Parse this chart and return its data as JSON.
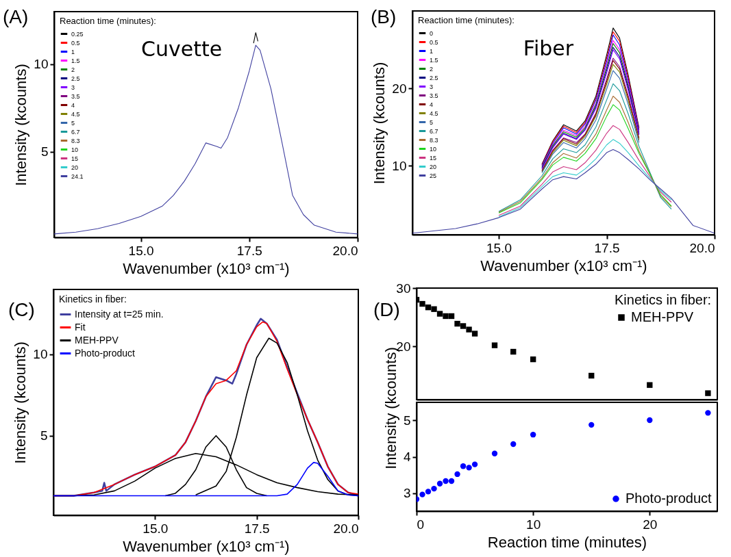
{
  "chart_data": [
    {
      "type": "line",
      "title": "(A)",
      "xlabel": "Wavenumber (x10³ cm⁻¹)",
      "ylabel": "Intensity (kcounts)",
      "legend_title": "Reaction time (minutes):",
      "legend": "top left",
      "annotations": [
        "Cuvette"
      ],
      "xlim": [
        13,
        20
      ],
      "xticks": [
        {
          "value": 15,
          "label": "15.0"
        },
        {
          "value": 17.5,
          "label": "17.5"
        },
        {
          "value": 20,
          "label": "20.0"
        }
      ],
      "ylim": [
        0.1,
        13
      ],
      "yticks": [
        5,
        10
      ],
      "grid": false,
      "x": [
        13,
        13.5,
        14,
        14.5,
        15,
        15.5,
        15.75,
        16,
        16.25,
        16.5,
        16.75,
        16.85,
        17,
        17.25,
        17.5,
        17.65,
        17.75,
        18,
        18.25,
        18.5,
        18.75,
        19,
        19.5,
        20
      ],
      "series": [
        {
          "name": "0.25",
          "color": "#000000",
          "x": [
            17.6,
            17.65,
            17.7
          ],
          "values": [
            11.2,
            11.8,
            11.3
          ]
        },
        {
          "name": "0.5",
          "color": "#ff0000",
          "values": [
            null,
            null,
            null,
            null,
            null,
            null,
            null,
            null,
            null,
            null,
            null,
            null,
            null,
            null,
            null,
            null,
            null,
            null,
            null,
            null,
            null,
            null,
            null,
            null
          ]
        },
        {
          "name": "1",
          "color": "#0000ff",
          "values": [
            null,
            null,
            null,
            null,
            null,
            null,
            null,
            null,
            null,
            null,
            null,
            null,
            null,
            null,
            null,
            null,
            null,
            null,
            null,
            null,
            null,
            null,
            null,
            null
          ]
        },
        {
          "name": "1.5",
          "color": "#ff00ff",
          "values": [
            null,
            null,
            null,
            null,
            null,
            null,
            null,
            null,
            null,
            null,
            null,
            null,
            null,
            null,
            null,
            null,
            null,
            null,
            null,
            null,
            null,
            null,
            null,
            null
          ]
        },
        {
          "name": "2",
          "color": "#008000",
          "values": [
            null,
            null,
            null,
            null,
            null,
            null,
            null,
            null,
            null,
            null,
            null,
            null,
            null,
            null,
            null,
            null,
            null,
            null,
            null,
            null,
            null,
            null,
            null,
            null
          ]
        },
        {
          "name": "2.5",
          "color": "#000080",
          "values": [
            null,
            null,
            null,
            null,
            null,
            null,
            null,
            null,
            null,
            null,
            null,
            null,
            null,
            null,
            null,
            null,
            null,
            null,
            null,
            null,
            null,
            null,
            null,
            null
          ]
        },
        {
          "name": "3",
          "color": "#8000ff",
          "values": [
            null,
            null,
            null,
            null,
            null,
            null,
            null,
            null,
            null,
            null,
            null,
            null,
            null,
            null,
            null,
            null,
            null,
            null,
            null,
            null,
            null,
            null,
            null,
            null
          ]
        },
        {
          "name": "3.5",
          "color": "#800080",
          "values": [
            null,
            null,
            null,
            null,
            null,
            null,
            null,
            null,
            null,
            null,
            null,
            null,
            null,
            null,
            null,
            null,
            null,
            null,
            null,
            null,
            null,
            null,
            null,
            null
          ]
        },
        {
          "name": "4",
          "color": "#800000",
          "values": [
            null,
            null,
            null,
            null,
            null,
            null,
            null,
            null,
            null,
            null,
            null,
            null,
            null,
            null,
            null,
            null,
            null,
            null,
            null,
            null,
            null,
            null,
            null,
            null
          ]
        },
        {
          "name": "4.5",
          "color": "#808000",
          "values": [
            null,
            null,
            null,
            null,
            null,
            null,
            null,
            null,
            null,
            null,
            null,
            null,
            null,
            null,
            null,
            null,
            null,
            null,
            null,
            null,
            null,
            null,
            null,
            null
          ]
        },
        {
          "name": "5",
          "color": "#3366aa",
          "values": [
            null,
            null,
            null,
            null,
            null,
            null,
            null,
            null,
            null,
            null,
            null,
            null,
            null,
            null,
            null,
            null,
            null,
            null,
            null,
            null,
            null,
            null,
            null,
            null
          ]
        },
        {
          "name": "6.7",
          "color": "#199999",
          "values": [
            null,
            null,
            null,
            null,
            null,
            null,
            null,
            null,
            null,
            null,
            null,
            null,
            null,
            null,
            null,
            null,
            null,
            null,
            null,
            null,
            null,
            null,
            null,
            null
          ]
        },
        {
          "name": "8.3",
          "color": "#a8692e",
          "values": [
            null,
            null,
            null,
            null,
            null,
            null,
            null,
            null,
            null,
            null,
            null,
            null,
            null,
            null,
            null,
            null,
            null,
            null,
            null,
            null,
            null,
            null,
            null,
            null
          ]
        },
        {
          "name": "10",
          "color": "#1ed41e",
          "values": [
            null,
            null,
            null,
            null,
            null,
            null,
            null,
            null,
            null,
            null,
            null,
            null,
            null,
            null,
            null,
            null,
            null,
            null,
            null,
            null,
            null,
            null,
            null,
            null
          ]
        },
        {
          "name": "15",
          "color": "#cc3380",
          "values": [
            null,
            null,
            null,
            null,
            null,
            null,
            null,
            null,
            null,
            null,
            null,
            null,
            null,
            null,
            null,
            null,
            null,
            null,
            null,
            null,
            null,
            null,
            null,
            null
          ]
        },
        {
          "name": "20",
          "color": "#33cccc",
          "values": [
            null,
            null,
            null,
            null,
            null,
            null,
            null,
            null,
            null,
            null,
            null,
            null,
            null,
            null,
            null,
            null,
            null,
            null,
            null,
            null,
            null,
            null,
            null,
            null
          ]
        },
        {
          "name": "24.1",
          "color": "#3f3f9f",
          "values": [
            0.3,
            0.4,
            0.6,
            0.9,
            1.3,
            1.9,
            2.5,
            3.3,
            4.3,
            5.5,
            5.3,
            5.2,
            5.8,
            7.5,
            9.6,
            11.08,
            10.8,
            8.6,
            5.6,
            2.5,
            1.4,
            0.8,
            0.4,
            0.3
          ]
        }
      ]
    },
    {
      "type": "line",
      "title": "(B)",
      "xlabel": "Wavenumber (x10³ cm⁻¹)",
      "ylabel": "Intensity (kcounts)",
      "legend_title": "Reaction time (minutes):",
      "legend": "top left",
      "annotations": [
        "Fiber"
      ],
      "xlim": [
        13,
        20
      ],
      "xticks": [
        {
          "value": 15,
          "label": "15.0"
        },
        {
          "value": 17.5,
          "label": "17.5"
        },
        {
          "value": 20,
          "label": "20.0"
        }
      ],
      "ylim": [
        1.1,
        30
      ],
      "yticks": [
        10,
        20
      ],
      "grid": false,
      "x": [
        13,
        14,
        14.5,
        15,
        15.5,
        16,
        16.25,
        16.5,
        16.8,
        17,
        17.25,
        17.5,
        17.65,
        17.8,
        18,
        18.25,
        18.5,
        18.75,
        19,
        19.5,
        20
      ],
      "series": [
        {
          "name": "0",
          "color": "#000000",
          "values": [
            null,
            null,
            null,
            null,
            null,
            10.2,
            13.2,
            15.3,
            14.5,
            15.8,
            19.0,
            24.3,
            27.8,
            26.5,
            21.7,
            14.9,
            null,
            null,
            null,
            null,
            null
          ]
        },
        {
          "name": "0.5",
          "color": "#ff0000",
          "values": [
            null,
            null,
            null,
            null,
            null,
            10.1,
            13.1,
            15.1,
            14.3,
            15.6,
            18.7,
            23.9,
            27.3,
            26.1,
            21.4,
            14.7,
            null,
            null,
            null,
            null,
            null
          ]
        },
        {
          "name": "1",
          "color": "#0000ff",
          "values": [
            null,
            null,
            null,
            null,
            null,
            10.0,
            12.9,
            14.9,
            14.1,
            15.4,
            18.5,
            23.5,
            26.9,
            25.6,
            21.0,
            14.6,
            null,
            null,
            null,
            null,
            null
          ]
        },
        {
          "name": "1.5",
          "color": "#ff00ff",
          "values": [
            null,
            null,
            null,
            null,
            null,
            9.9,
            12.7,
            14.6,
            13.9,
            15.1,
            18.1,
            23.0,
            26.2,
            25.0,
            20.6,
            14.4,
            null,
            null,
            null,
            null,
            null
          ]
        },
        {
          "name": "2",
          "color": "#008000",
          "values": [
            null,
            null,
            null,
            null,
            null,
            9.8,
            12.6,
            14.4,
            13.7,
            14.9,
            17.9,
            22.7,
            25.8,
            24.6,
            20.3,
            14.2,
            null,
            null,
            null,
            null,
            null
          ]
        },
        {
          "name": "2.5",
          "color": "#000080",
          "values": [
            null,
            null,
            null,
            null,
            null,
            9.7,
            12.4,
            14.2,
            13.5,
            14.7,
            17.6,
            22.3,
            25.3,
            24.1,
            20.0,
            14.1,
            null,
            null,
            null,
            null,
            null
          ]
        },
        {
          "name": "3",
          "color": "#8000ff",
          "values": [
            null,
            null,
            null,
            null,
            null,
            9.6,
            12.3,
            14.1,
            13.4,
            14.6,
            17.4,
            22.0,
            25.0,
            23.8,
            19.7,
            14.0,
            null,
            null,
            null,
            null,
            null
          ]
        },
        {
          "name": "3.5",
          "color": "#800080",
          "values": [
            null,
            null,
            null,
            null,
            null,
            9.4,
            12.0,
            13.6,
            13.0,
            14.1,
            16.8,
            21.2,
            23.9,
            22.8,
            19.0,
            13.6,
            null,
            null,
            null,
            null,
            null
          ]
        },
        {
          "name": "4",
          "color": "#800000",
          "values": [
            null,
            null,
            null,
            null,
            null,
            9.3,
            11.9,
            13.5,
            12.8,
            14.0,
            16.6,
            20.9,
            23.6,
            22.5,
            18.8,
            13.5,
            null,
            null,
            null,
            null,
            null
          ]
        },
        {
          "name": "4.5",
          "color": "#808000",
          "values": [
            null,
            null,
            null,
            null,
            null,
            9.2,
            11.7,
            13.3,
            12.6,
            13.8,
            16.4,
            20.5,
            23.1,
            22.1,
            18.4,
            13.3,
            null,
            null,
            null,
            null,
            null
          ]
        },
        {
          "name": "5",
          "color": "#3366aa",
          "values": [
            null,
            null,
            null,
            null,
            null,
            9.1,
            11.5,
            13.0,
            12.3,
            13.5,
            15.9,
            19.9,
            22.3,
            21.3,
            17.9,
            13.0,
            null,
            null,
            null,
            null,
            null
          ]
        },
        {
          "name": "6.7",
          "color": "#199999",
          "values": [
            null,
            null,
            null,
            4.1,
            5.6,
            8.7,
            10.9,
            12.2,
            11.7,
            12.7,
            15.0,
            18.5,
            20.6,
            19.7,
            16.7,
            12.5,
            null,
            5.9,
            4.4,
            null,
            null
          ]
        },
        {
          "name": "8.3",
          "color": "#a8692e",
          "values": [
            null,
            null,
            null,
            4.0,
            5.4,
            8.4,
            10.4,
            11.6,
            11.0,
            12.1,
            14.1,
            17.2,
            19.0,
            18.2,
            15.6,
            11.9,
            null,
            6.1,
            4.7,
            null,
            null
          ]
        },
        {
          "name": "10",
          "color": "#1ed41e",
          "values": [
            null,
            null,
            null,
            3.9,
            5.2,
            8.2,
            10.1,
            11.1,
            10.6,
            11.6,
            13.5,
            16.4,
            17.9,
            17.2,
            14.8,
            11.6,
            null,
            6.3,
            4.8,
            null,
            null
          ]
        },
        {
          "name": "15",
          "color": "#cc3380",
          "values": [
            null,
            null,
            null,
            3.6,
            4.8,
            7.6,
            9.2,
            9.9,
            9.5,
            10.4,
            12.0,
            14.2,
            15.2,
            14.7,
            13.0,
            10.7,
            null,
            6.6,
            5.3,
            null,
            null
          ]
        },
        {
          "name": "20",
          "color": "#33cccc",
          "values": [
            null,
            null,
            null,
            3.4,
            4.6,
            7.3,
            8.6,
            9.1,
            8.8,
            9.6,
            10.9,
            12.7,
            13.4,
            12.9,
            11.7,
            10.0,
            null,
            6.8,
            5.6,
            null,
            null
          ]
        },
        {
          "name": "25",
          "color": "#3f3f9f",
          "values": [
            1.3,
            1.9,
            2.5,
            3.3,
            4.4,
            7.0,
            8.2,
            8.6,
            8.3,
            9.1,
            10.2,
            11.7,
            12.1,
            11.7,
            10.8,
            9.6,
            8.2,
            7.0,
            5.8,
            2.3,
            1.3
          ]
        }
      ]
    },
    {
      "type": "line",
      "title": "(C)",
      "xlabel": "Wavenumber (x10³ cm⁻¹)",
      "ylabel": "Intensity (kcounts)",
      "legend_title": "Kinetics in fiber:",
      "legend": "top left",
      "xlim": [
        12.5,
        20
      ],
      "xticks": [
        {
          "value": 15,
          "label": "15.0"
        },
        {
          "value": 17.5,
          "label": "17.5"
        },
        {
          "value": 20,
          "label": "20.0"
        }
      ],
      "ylim": [
        0.1,
        14
      ],
      "yticks": [
        5,
        10
      ],
      "grid": false,
      "series": [
        {
          "name": "Intensity at t=25 min.",
          "color": "#3f3f9f",
          "x": [
            12.5,
            13,
            13.5,
            13.7,
            13.75,
            13.8,
            14,
            14.5,
            15,
            15.5,
            15.75,
            16,
            16.25,
            16.5,
            16.75,
            16.9,
            17,
            17.25,
            17.5,
            17.6,
            17.75,
            18,
            18.25,
            18.5,
            18.75,
            19,
            19.25,
            19.5,
            19.75,
            20
          ],
          "values": [
            1.3,
            1.3,
            1.5,
            1.6,
            2.1,
            1.6,
            2.0,
            2.6,
            3.1,
            3.8,
            4.6,
            5.9,
            7.4,
            8.6,
            8.4,
            8.2,
            8.8,
            10.6,
            11.8,
            12.2,
            11.9,
            10.9,
            9.2,
            7.6,
            6.0,
            4.6,
            3.1,
            2.0,
            1.5,
            1.3
          ]
        },
        {
          "name": "Fit",
          "color": "#ff0000",
          "x": [
            12.5,
            13,
            13.5,
            14,
            14.5,
            15,
            15.5,
            15.75,
            16,
            16.25,
            16.5,
            16.75,
            17,
            17.25,
            17.5,
            17.65,
            17.75,
            18,
            18.25,
            18.5,
            18.75,
            19,
            19.25,
            19.5,
            19.75,
            20
          ],
          "values": [
            1.3,
            1.3,
            1.5,
            2.0,
            2.6,
            3.1,
            3.8,
            4.6,
            5.9,
            7.4,
            8.2,
            8.4,
            9.0,
            10.6,
            11.7,
            12.0,
            11.9,
            10.8,
            9.1,
            7.5,
            6.0,
            4.6,
            3.1,
            2.0,
            1.5,
            1.4
          ]
        },
        {
          "name": "MEH-PPV",
          "color": "#000000",
          "x": [
            12.5,
            13,
            13.5,
            14,
            14.5,
            15,
            15.5,
            16,
            16.5,
            17,
            17.5,
            18,
            18.5,
            19,
            19.5,
            20
          ],
          "values": [
            1.3,
            1.3,
            1.35,
            1.6,
            2.2,
            3.0,
            3.6,
            3.9,
            3.7,
            3.2,
            2.6,
            2.1,
            1.8,
            1.55,
            1.4,
            1.35
          ]
        },
        {
          "color": "#000000",
          "x": [
            15.25,
            15.5,
            15.75,
            16,
            16.25,
            16.5,
            16.75,
            17,
            17.25,
            17.5,
            17.75
          ],
          "values": [
            1.3,
            1.45,
            2.0,
            2.9,
            4.3,
            5.0,
            4.3,
            2.9,
            1.8,
            1.45,
            1.3
          ]
        },
        {
          "color": "#000000",
          "x": [
            16,
            16.5,
            16.75,
            17,
            17.25,
            17.5,
            17.8,
            18,
            18.25,
            18.5,
            18.75,
            19,
            19.25,
            19.5,
            19.75,
            20
          ],
          "values": [
            1.35,
            1.9,
            2.8,
            4.9,
            7.5,
            9.8,
            11.0,
            10.7,
            9.5,
            7.5,
            5.3,
            3.5,
            2.3,
            1.6,
            1.35,
            1.3
          ]
        },
        {
          "name": "Photo-product",
          "color": "#0000ff",
          "x": [
            12.5,
            18,
            18.25,
            18.5,
            18.75,
            18.9,
            19,
            19.25,
            19.5,
            19.75,
            20
          ],
          "values": [
            1.3,
            1.3,
            1.4,
            2.0,
            3.0,
            3.35,
            3.3,
            2.5,
            1.6,
            1.35,
            1.3
          ]
        }
      ]
    },
    {
      "type": "scatter",
      "title": "(D)",
      "legend_title": "Kinetics in fiber:",
      "legend": "top right",
      "marker": "square",
      "tick_labels": "y",
      "xlim": [
        0,
        25.8
      ],
      "xticks": [
        0,
        10,
        20
      ],
      "ylim": [
        10.9,
        30
      ],
      "yticks": [
        20,
        30
      ],
      "grid": false,
      "x": [
        0,
        0.5,
        1,
        1.5,
        2,
        2.5,
        3,
        3.5,
        4,
        4.5,
        5,
        6.7,
        8.3,
        10,
        15,
        20,
        25
      ],
      "series": [
        {
          "name": "MEH-PPV",
          "color": "#000000",
          "values": [
            28.0,
            27.3,
            26.7,
            26.4,
            25.6,
            25.2,
            25.2,
            23.9,
            23.5,
            22.9,
            22.2,
            20.2,
            19.1,
            17.8,
            15.0,
            13.4,
            12.0
          ]
        }
      ]
    },
    {
      "type": "scatter",
      "xlabel": "Reaction time (minutes)",
      "ylabel": "Intensity (kcounts)",
      "legend": "bottom right",
      "marker": "circle",
      "xlim": [
        0,
        25.8
      ],
      "xticks": [
        0,
        10,
        20
      ],
      "ylim": [
        2.5,
        5.5
      ],
      "yticks": [
        3,
        4,
        5
      ],
      "grid": false,
      "x": [
        0,
        0.5,
        1,
        1.5,
        2,
        2.5,
        3,
        3.5,
        4,
        4.5,
        5,
        6.7,
        8.3,
        10,
        15,
        20,
        25
      ],
      "series": [
        {
          "name": "Photo-product",
          "color": "#0000ff",
          "values": [
            2.83,
            2.96,
            3.04,
            3.12,
            3.26,
            3.33,
            3.33,
            3.52,
            3.74,
            3.7,
            3.79,
            4.09,
            4.35,
            4.61,
            4.88,
            5.01,
            5.21
          ]
        }
      ]
    }
  ]
}
